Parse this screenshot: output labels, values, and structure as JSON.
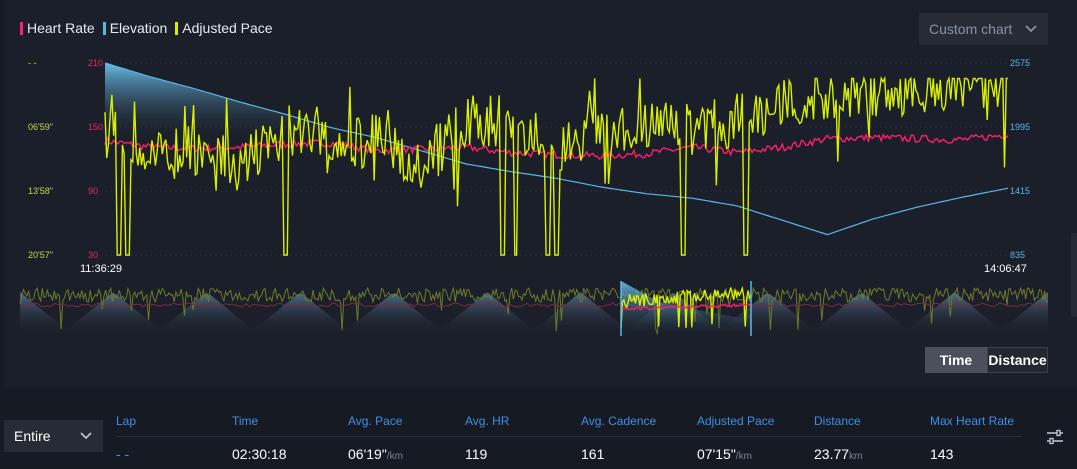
{
  "legend": [
    {
      "label": "Heart Rate",
      "color": "#ff1f6a"
    },
    {
      "label": "Elevation",
      "color": "#5bb7e8"
    },
    {
      "label": "Adjusted Pace",
      "color": "#d8f000"
    }
  ],
  "custom_chart": {
    "label": "Custom chart",
    "icon": "chevron-down-icon"
  },
  "chart_data": {
    "type": "line",
    "x_start_label": "11:36:29",
    "x_end_label": "14:06:47",
    "axes": {
      "pace": {
        "ticks": [
          "- -",
          "06'59\"",
          "13'58\"",
          "20'57\""
        ],
        "color": "#c6d94a"
      },
      "heart_rate": {
        "ticks": [
          "210",
          "150",
          "90",
          "30"
        ],
        "range": [
          30,
          210
        ],
        "color": "#e8285e"
      },
      "elevation": {
        "ticks": [
          "2575",
          "1995",
          "1415",
          "835"
        ],
        "range": [
          835,
          2575
        ],
        "color": "#5bb7e8"
      }
    },
    "series": [
      {
        "name": "Heart Rate",
        "color": "#ff1f6a",
        "x_frac": [
          0,
          0.05,
          0.1,
          0.15,
          0.2,
          0.25,
          0.3,
          0.35,
          0.4,
          0.45,
          0.5,
          0.55,
          0.6,
          0.65,
          0.7,
          0.75,
          0.8,
          0.85,
          0.9,
          0.95,
          1
        ],
        "values": [
          137,
          131,
          130,
          131,
          134,
          135,
          128,
          129,
          131,
          126,
          124,
          123,
          125,
          131,
          126,
          131,
          139,
          140,
          139,
          138,
          143
        ]
      },
      {
        "name": "Elevation",
        "color": "#5bb7e8",
        "x_frac": [
          0,
          0.05,
          0.1,
          0.15,
          0.2,
          0.25,
          0.3,
          0.35,
          0.4,
          0.45,
          0.5,
          0.55,
          0.6,
          0.65,
          0.7,
          0.75,
          0.8,
          0.85,
          0.9,
          0.95,
          1
        ],
        "values": [
          2575,
          2450,
          2340,
          2220,
          2110,
          1990,
          1900,
          1780,
          1660,
          1590,
          1530,
          1450,
          1390,
          1350,
          1280,
          1150,
          1020,
          1160,
          1270,
          1360,
          1440
        ]
      },
      {
        "name": "Adjusted Pace",
        "color": "#d8f000",
        "x_frac": [
          0,
          0.05,
          0.1,
          0.15,
          0.2,
          0.25,
          0.3,
          0.35,
          0.4,
          0.45,
          0.5,
          0.55,
          0.6,
          0.65,
          0.7,
          0.75,
          0.8,
          0.85,
          0.9,
          0.95,
          1
        ],
        "values_frac": [
          0.3,
          0.5,
          0.45,
          0.55,
          0.35,
          0.45,
          0.4,
          0.55,
          0.3,
          0.3,
          0.45,
          0.35,
          0.3,
          0.35,
          0.3,
          0.2,
          0.15,
          0.15,
          0.15,
          0.1,
          0.1
        ]
      }
    ]
  },
  "toggle": {
    "time": "Time",
    "distance": "Distance"
  },
  "lap_select": {
    "value": "Entire"
  },
  "stats": {
    "headers": [
      "Lap",
      "Time",
      "Avg. Pace",
      "Avg. HR",
      "Avg. Cadence",
      "Adjusted Pace",
      "Distance",
      "Max Heart Rate"
    ],
    "values": [
      {
        "value": "- -",
        "unit": ""
      },
      {
        "value": "02:30:18",
        "unit": ""
      },
      {
        "value": "06'19\"",
        "unit": "/km"
      },
      {
        "value": "119",
        "unit": ""
      },
      {
        "value": "161",
        "unit": ""
      },
      {
        "value": "07'15\"",
        "unit": "/km"
      },
      {
        "value": "23.77",
        "unit": "km"
      },
      {
        "value": "143",
        "unit": ""
      }
    ]
  }
}
